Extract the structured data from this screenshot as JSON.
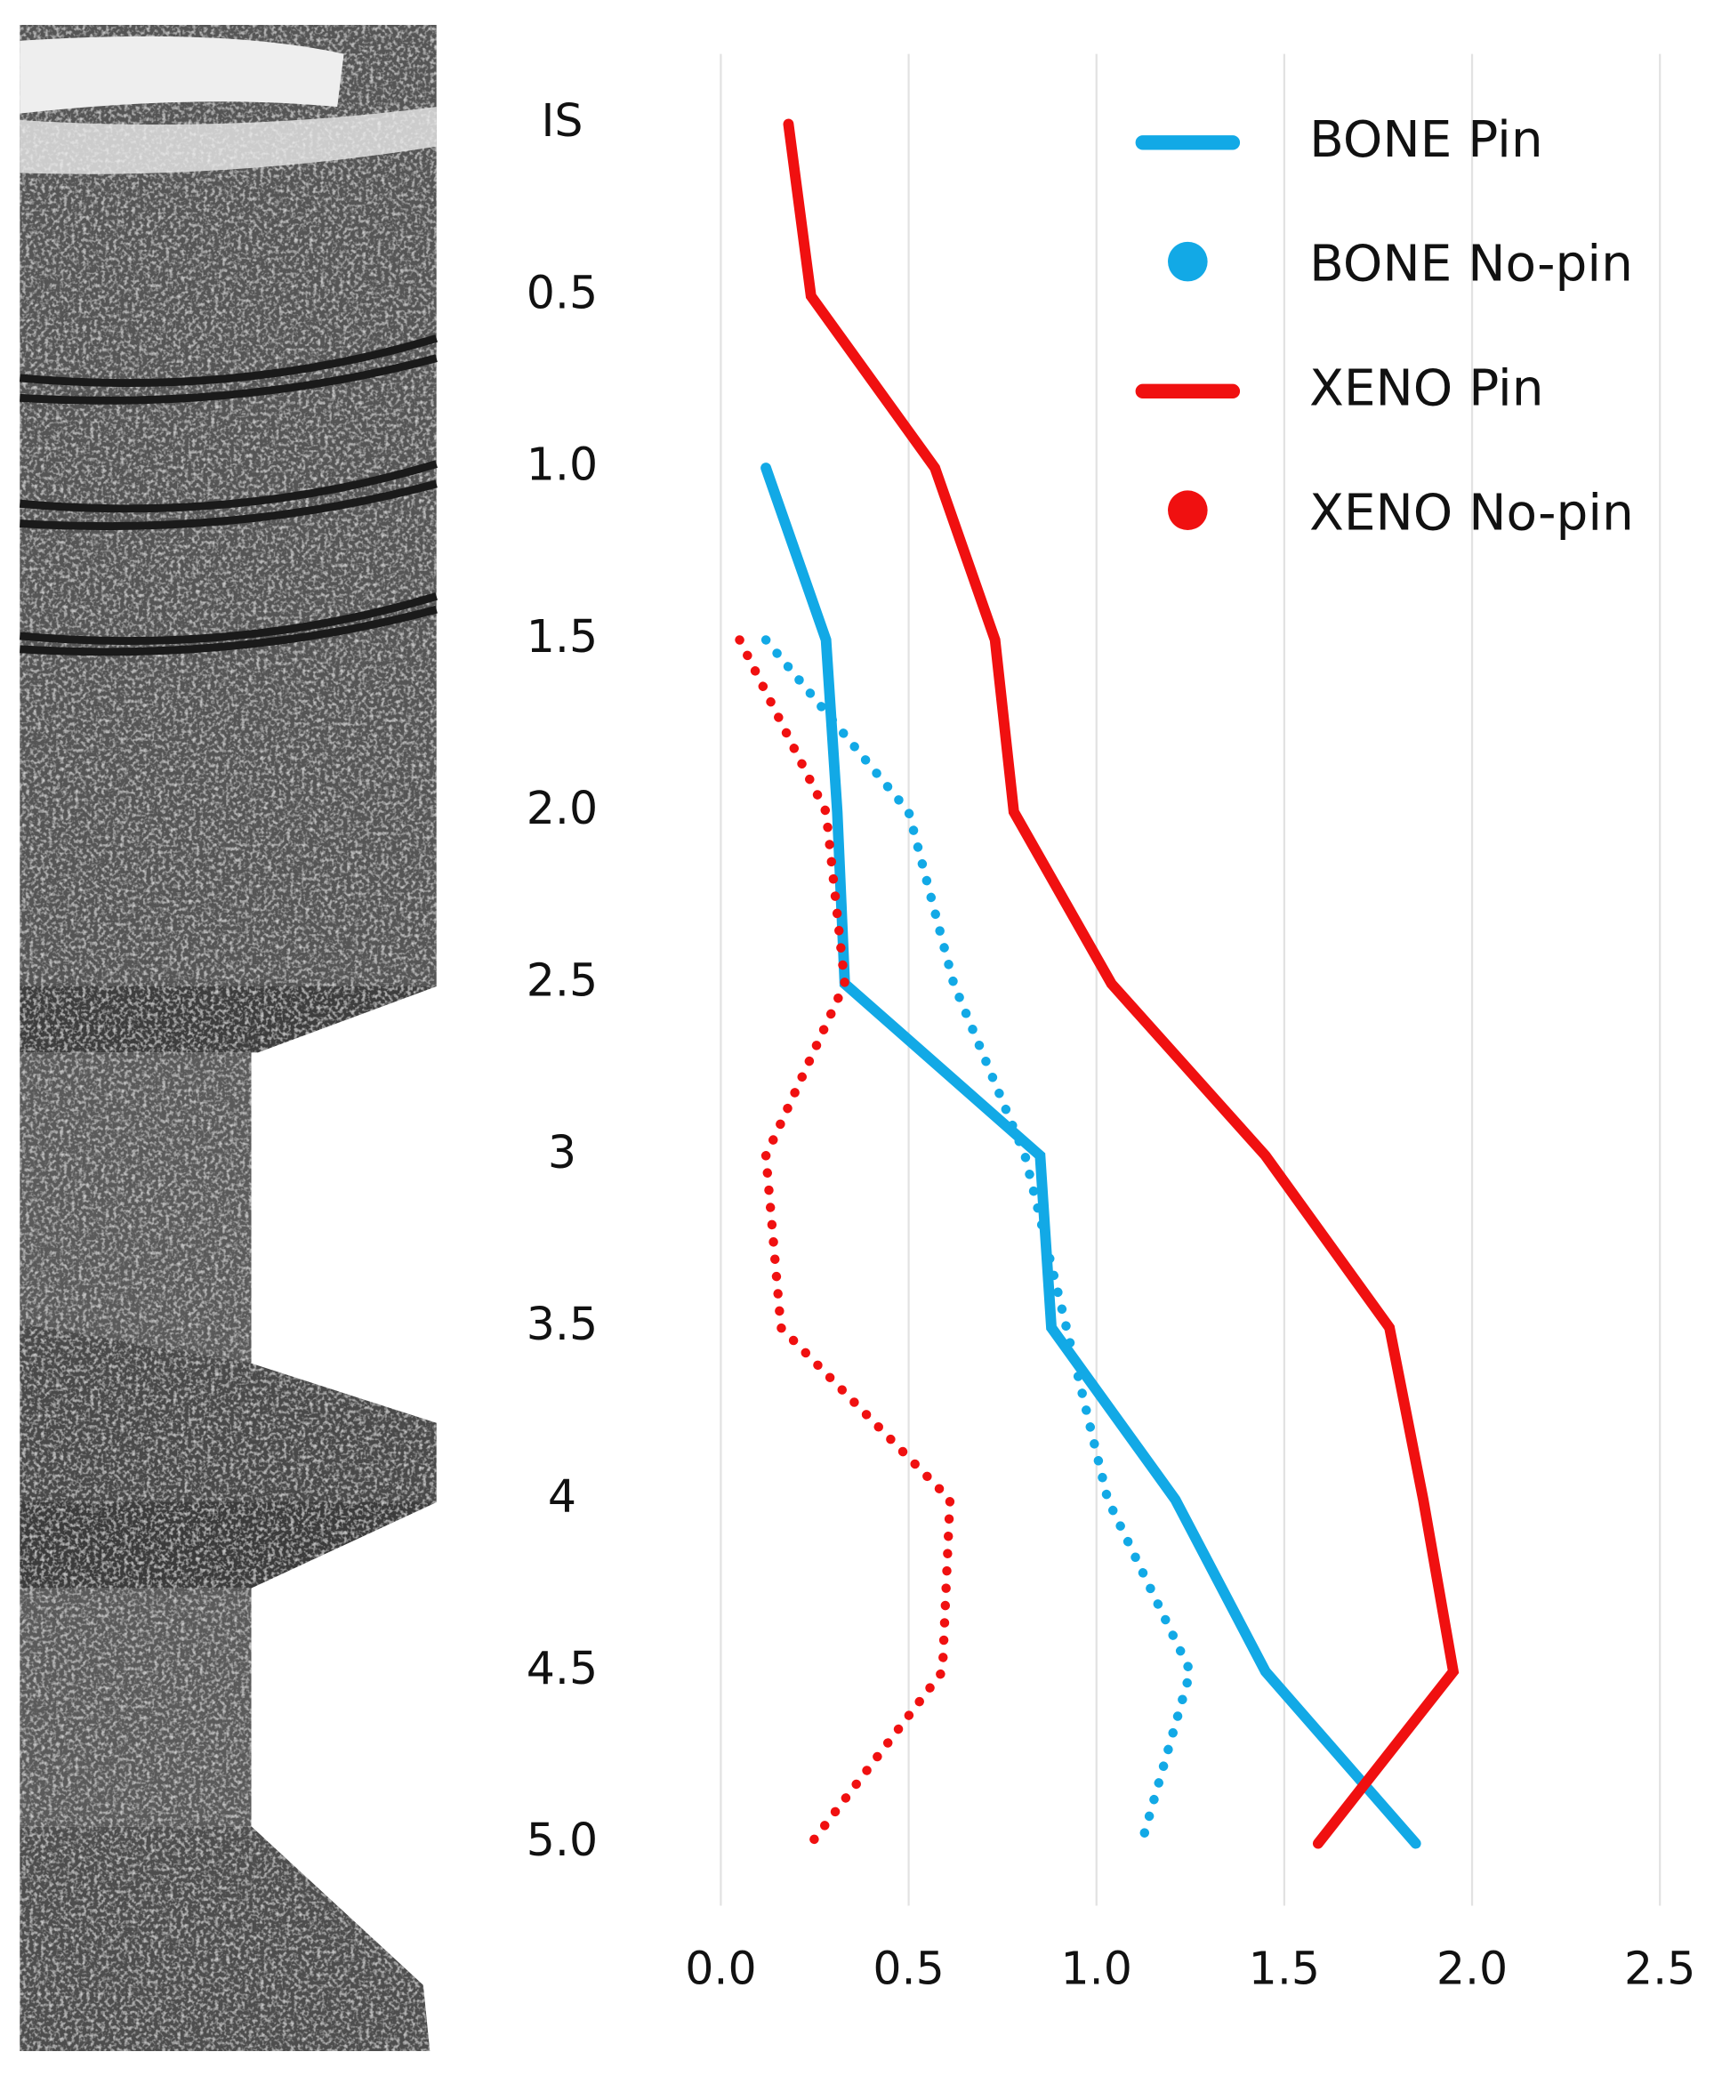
{
  "chart_data": {
    "type": "line",
    "categories": [
      "IS",
      "0.5",
      "1.0",
      "1.5",
      "2.0",
      "2.5",
      "3",
      "3.5",
      "4",
      "4.5",
      "5.0"
    ],
    "xlim": [
      0,
      2.5
    ],
    "xticks": [
      {
        "value": 0,
        "label": "0.0"
      },
      0.5,
      {
        "value": 1,
        "label": "1.0"
      },
      1.5,
      {
        "value": 2,
        "label": "2.0"
      },
      2.5
    ],
    "grid": true,
    "legend": "top-right",
    "series": [
      {
        "name": "BONE Pin",
        "color": "#12a9e6",
        "style": "solid",
        "values": [
          null,
          null,
          0.12,
          0.28,
          0.31,
          0.33,
          0.85,
          0.88,
          1.21,
          1.45,
          1.85
        ]
      },
      {
        "name": "BONE No-pin",
        "color": "#12a9e6",
        "style": "dotted",
        "values": [
          null,
          null,
          null,
          0.12,
          0.5,
          0.62,
          0.81,
          0.92,
          1.03,
          1.25,
          1.12
        ]
      },
      {
        "name": "XENO Pin",
        "color": "#f01010",
        "style": "solid",
        "values": [
          0.18,
          0.24,
          0.57,
          0.73,
          0.78,
          1.04,
          1.45,
          1.78,
          1.87,
          1.95,
          1.59
        ]
      },
      {
        "name": "XENO No-pin",
        "color": "#f01010",
        "style": "dotted",
        "values": [
          null,
          null,
          null,
          0.05,
          0.28,
          0.33,
          0.12,
          0.16,
          0.61,
          0.59,
          0.24
        ]
      }
    ]
  }
}
